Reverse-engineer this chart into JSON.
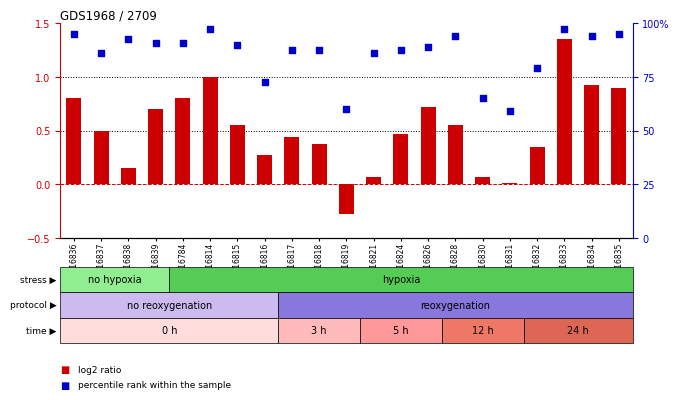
{
  "title": "GDS1968 / 2709",
  "samples": [
    "GSM16836",
    "GSM16837",
    "GSM16838",
    "GSM16839",
    "GSM16784",
    "GSM16814",
    "GSM16815",
    "GSM16816",
    "GSM16817",
    "GSM16818",
    "GSM16819",
    "GSM16821",
    "GSM16824",
    "GSM16826",
    "GSM16828",
    "GSM16830",
    "GSM16831",
    "GSM16832",
    "GSM16833",
    "GSM16834",
    "GSM16835"
  ],
  "log2_ratio": [
    0.8,
    0.5,
    0.15,
    0.7,
    0.8,
    1.0,
    0.55,
    0.27,
    0.44,
    0.38,
    -0.28,
    0.07,
    0.47,
    0.72,
    0.55,
    0.07,
    0.01,
    0.35,
    1.35,
    0.93,
    0.9
  ],
  "percentile": [
    1.4,
    1.22,
    1.35,
    1.32,
    1.32,
    1.45,
    1.3,
    0.95,
    1.25,
    1.25,
    0.7,
    1.22,
    1.25,
    1.28,
    1.38,
    0.8,
    0.68,
    1.08,
    1.45,
    1.38,
    1.4
  ],
  "bar_color": "#cc0000",
  "dot_color": "#0000cc",
  "ylim_left": [
    -0.5,
    1.5
  ],
  "ylim_right": [
    0,
    100
  ],
  "yticks_left": [
    -0.5,
    0.0,
    0.5,
    1.0,
    1.5
  ],
  "yticks_right": [
    0,
    25,
    50,
    75,
    100
  ],
  "hline_values": [
    0.0,
    0.5,
    1.0
  ],
  "hline_styles": [
    "dashed",
    "dotted",
    "dotted"
  ],
  "hline_colors": [
    "#cc0000",
    "#000000",
    "#000000"
  ],
  "stress_groups": [
    {
      "label": "no hypoxia",
      "start": 0,
      "end": 4,
      "color": "#90ee90"
    },
    {
      "label": "hypoxia",
      "start": 4,
      "end": 21,
      "color": "#55cc55"
    }
  ],
  "protocol_groups": [
    {
      "label": "no reoxygenation",
      "start": 0,
      "end": 8,
      "color": "#ccbbee"
    },
    {
      "label": "reoxygenation",
      "start": 8,
      "end": 21,
      "color": "#8877dd"
    }
  ],
  "time_groups": [
    {
      "label": "0 h",
      "start": 0,
      "end": 8,
      "color": "#ffdddd"
    },
    {
      "label": "3 h",
      "start": 8,
      "end": 11,
      "color": "#ffbbbb"
    },
    {
      "label": "5 h",
      "start": 11,
      "end": 14,
      "color": "#ff9999"
    },
    {
      "label": "12 h",
      "start": 14,
      "end": 17,
      "color": "#ee7766"
    },
    {
      "label": "24 h",
      "start": 17,
      "end": 21,
      "color": "#dd6655"
    }
  ],
  "row_labels": [
    "stress",
    "protocol",
    "time"
  ],
  "legend_bar_label": "log2 ratio",
  "legend_dot_label": "percentile rank within the sample",
  "background_color": "#ffffff"
}
